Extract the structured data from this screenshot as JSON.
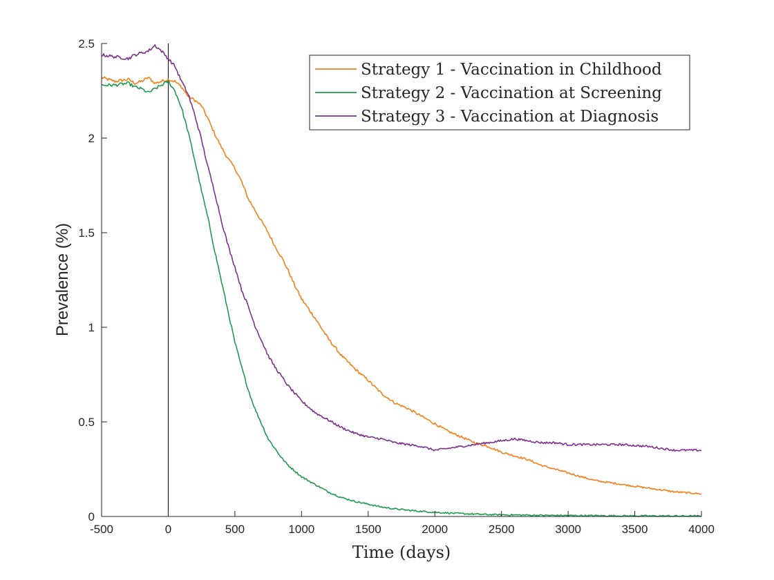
{
  "chart_data": {
    "type": "line",
    "xlabel": "Time (days)",
    "ylabel": "Prevalence (%)",
    "xlim": [
      -500,
      4000
    ],
    "ylim": [
      0,
      2.5
    ],
    "xticks": [
      -500,
      0,
      500,
      1000,
      1500,
      2000,
      2500,
      3000,
      3500,
      4000
    ],
    "yticks": [
      0,
      0.5,
      1,
      1.5,
      2,
      2.5
    ],
    "x_tick_labels": [
      "-500",
      "0",
      "500",
      "1000",
      "1500",
      "2000",
      "2500",
      "3000",
      "3500",
      "4000"
    ],
    "y_tick_labels": [
      "0",
      "0.5",
      "1",
      "1.5",
      "2",
      "2.5"
    ],
    "grid": false,
    "vertical_line_x": 0,
    "legend_position": "top-right",
    "series": [
      {
        "name": "Strategy 1 - Vaccination in Childhood",
        "color": "#f57f17",
        "x": [
          -500,
          -400,
          -300,
          -250,
          -200,
          -150,
          -100,
          -50,
          0,
          50,
          100,
          150,
          200,
          250,
          300,
          350,
          400,
          450,
          500,
          550,
          600,
          650,
          700,
          750,
          800,
          850,
          900,
          950,
          1000,
          1100,
          1200,
          1300,
          1400,
          1500,
          1600,
          1700,
          1800,
          1900,
          2000,
          2100,
          2200,
          2300,
          2400,
          2500,
          2600,
          2700,
          2800,
          2900,
          3000,
          3200,
          3400,
          3600,
          3800,
          4000
        ],
        "y": [
          2.32,
          2.3,
          2.31,
          2.29,
          2.3,
          2.32,
          2.29,
          2.3,
          2.31,
          2.3,
          2.27,
          2.22,
          2.2,
          2.17,
          2.1,
          2.02,
          1.95,
          1.89,
          1.84,
          1.77,
          1.68,
          1.62,
          1.56,
          1.5,
          1.43,
          1.37,
          1.3,
          1.22,
          1.15,
          1.05,
          0.94,
          0.85,
          0.78,
          0.72,
          0.65,
          0.6,
          0.57,
          0.53,
          0.49,
          0.45,
          0.42,
          0.39,
          0.37,
          0.34,
          0.32,
          0.3,
          0.27,
          0.25,
          0.23,
          0.19,
          0.17,
          0.15,
          0.13,
          0.12
        ]
      },
      {
        "name": "Strategy 2 - Vaccination at Screening",
        "color": "#1e9a4c",
        "x": [
          -500,
          -400,
          -300,
          -250,
          -200,
          -150,
          -100,
          -50,
          0,
          50,
          100,
          150,
          200,
          250,
          300,
          350,
          400,
          450,
          500,
          550,
          600,
          650,
          700,
          750,
          800,
          850,
          900,
          950,
          1000,
          1100,
          1200,
          1300,
          1400,
          1500,
          1600,
          1700,
          1800,
          1900,
          2000,
          2200,
          2400,
          2600,
          2800,
          3000,
          3200,
          3500,
          4000
        ],
        "y": [
          2.28,
          2.28,
          2.29,
          2.27,
          2.26,
          2.24,
          2.26,
          2.28,
          2.3,
          2.25,
          2.16,
          2.03,
          1.88,
          1.72,
          1.57,
          1.4,
          1.24,
          1.08,
          0.92,
          0.79,
          0.67,
          0.57,
          0.49,
          0.41,
          0.36,
          0.31,
          0.27,
          0.24,
          0.21,
          0.17,
          0.13,
          0.1,
          0.08,
          0.065,
          0.05,
          0.04,
          0.033,
          0.027,
          0.022,
          0.015,
          0.01,
          0.008,
          0.006,
          0.005,
          0.004,
          0.003,
          0.002
        ]
      },
      {
        "name": "Strategy 3 - Vaccination at Diagnosis",
        "color": "#7e2f8e",
        "x": [
          -500,
          -400,
          -300,
          -250,
          -200,
          -150,
          -100,
          -50,
          0,
          50,
          100,
          150,
          200,
          250,
          300,
          350,
          400,
          450,
          500,
          550,
          600,
          650,
          700,
          750,
          800,
          850,
          900,
          950,
          1000,
          1100,
          1200,
          1300,
          1400,
          1500,
          1600,
          1700,
          1800,
          1900,
          2000,
          2100,
          2200,
          2300,
          2400,
          2500,
          2600,
          2700,
          2800,
          2900,
          3000,
          3200,
          3400,
          3600,
          3800,
          4000
        ],
        "y": [
          2.44,
          2.43,
          2.42,
          2.44,
          2.45,
          2.46,
          2.49,
          2.46,
          2.42,
          2.38,
          2.3,
          2.23,
          2.12,
          1.99,
          1.84,
          1.71,
          1.56,
          1.43,
          1.32,
          1.2,
          1.11,
          1.01,
          0.93,
          0.85,
          0.79,
          0.74,
          0.69,
          0.65,
          0.61,
          0.55,
          0.51,
          0.47,
          0.44,
          0.42,
          0.41,
          0.39,
          0.38,
          0.37,
          0.35,
          0.36,
          0.37,
          0.38,
          0.39,
          0.4,
          0.41,
          0.4,
          0.39,
          0.39,
          0.38,
          0.38,
          0.38,
          0.37,
          0.35,
          0.35
        ]
      }
    ]
  }
}
